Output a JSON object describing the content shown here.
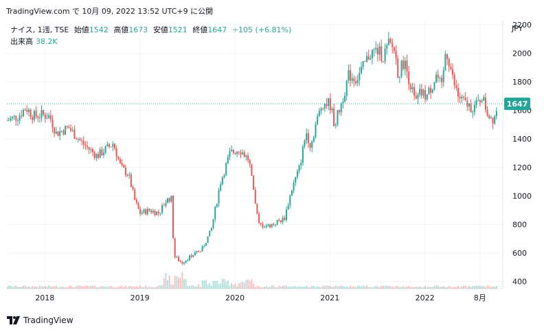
{
  "header": {
    "source_line": "TradingView.com で 10月 09, 2022 13:52 UTC+9 に公開"
  },
  "legend": {
    "symbol": "ナイス, 1週, TSE",
    "open_label": "始値",
    "open": "1542",
    "high_label": "高値",
    "high": "1673",
    "low_label": "安値",
    "low": "1521",
    "close_label": "終値",
    "close": "1647",
    "change": "+105 (+6.81%)",
    "volume_label": "出来高",
    "volume": "38.2K"
  },
  "currency": "JPY",
  "last_price_tag": "1647",
  "footer": {
    "brand": "TradingView",
    "logo_icon": "tradingview-logo-icon"
  },
  "colors": {
    "up": "#26a69a",
    "down": "#ef5350",
    "grid": "#f0f3fa",
    "price_line": "#26a69a"
  },
  "chart_data": {
    "type": "candlestick",
    "interval": "1 week",
    "ylim": [
      350,
      2230
    ],
    "y_ticks": [
      400,
      600,
      800,
      1000,
      1200,
      1400,
      1600,
      1800,
      2000,
      2200
    ],
    "x_tick_labels": [
      "2018",
      "2019",
      "2020",
      "2021",
      "2022",
      "8月"
    ],
    "x_tick_positions": [
      2018.0,
      2019.0,
      2020.0,
      2021.0,
      2022.0,
      2022.58
    ],
    "xlim": [
      2017.6,
      2022.82
    ],
    "grid": true,
    "last_close": 1647,
    "price_path": [
      [
        2017.6,
        1530
      ],
      [
        2017.72,
        1560
      ],
      [
        2017.8,
        1620
      ],
      [
        2017.88,
        1560
      ],
      [
        2017.96,
        1570
      ],
      [
        2018.05,
        1560
      ],
      [
        2018.12,
        1440
      ],
      [
        2018.25,
        1480
      ],
      [
        2018.38,
        1380
      ],
      [
        2018.55,
        1280
      ],
      [
        2018.72,
        1370
      ],
      [
        2018.8,
        1200
      ],
      [
        2018.88,
        1150
      ],
      [
        2018.95,
        960
      ],
      [
        2019.0,
        880
      ],
      [
        2019.1,
        900
      ],
      [
        2019.2,
        880
      ],
      [
        2019.28,
        970
      ],
      [
        2019.33,
        990
      ],
      [
        2019.36,
        580
      ],
      [
        2019.44,
        530
      ],
      [
        2019.55,
        590
      ],
      [
        2019.65,
        620
      ],
      [
        2019.75,
        760
      ],
      [
        2019.85,
        1100
      ],
      [
        2019.95,
        1300
      ],
      [
        2020.05,
        1330
      ],
      [
        2020.15,
        1250
      ],
      [
        2020.2,
        1000
      ],
      [
        2020.25,
        800
      ],
      [
        2020.35,
        790
      ],
      [
        2020.45,
        820
      ],
      [
        2020.52,
        840
      ],
      [
        2020.6,
        1050
      ],
      [
        2020.68,
        1200
      ],
      [
        2020.75,
        1450
      ],
      [
        2020.8,
        1350
      ],
      [
        2020.85,
        1500
      ],
      [
        2020.92,
        1650
      ],
      [
        2021.0,
        1650
      ],
      [
        2021.05,
        1500
      ],
      [
        2021.12,
        1650
      ],
      [
        2021.2,
        1850
      ],
      [
        2021.28,
        1820
      ],
      [
        2021.35,
        1900
      ],
      [
        2021.42,
        2000
      ],
      [
        2021.5,
        2020
      ],
      [
        2021.56,
        1980
      ],
      [
        2021.62,
        2060
      ],
      [
        2021.68,
        2030
      ],
      [
        2021.72,
        1850
      ],
      [
        2021.78,
        1950
      ],
      [
        2021.85,
        1780
      ],
      [
        2021.9,
        1650
      ],
      [
        2021.95,
        1720
      ],
      [
        2022.02,
        1700
      ],
      [
        2022.08,
        1780
      ],
      [
        2022.12,
        1850
      ],
      [
        2022.18,
        1750
      ],
      [
        2022.22,
        2030
      ],
      [
        2022.26,
        1930
      ],
      [
        2022.3,
        1800
      ],
      [
        2022.35,
        1700
      ],
      [
        2022.42,
        1650
      ],
      [
        2022.5,
        1620
      ],
      [
        2022.55,
        1640
      ],
      [
        2022.6,
        1700
      ],
      [
        2022.66,
        1580
      ],
      [
        2022.72,
        1540
      ],
      [
        2022.77,
        1647
      ]
    ],
    "volume_max": 1
  }
}
